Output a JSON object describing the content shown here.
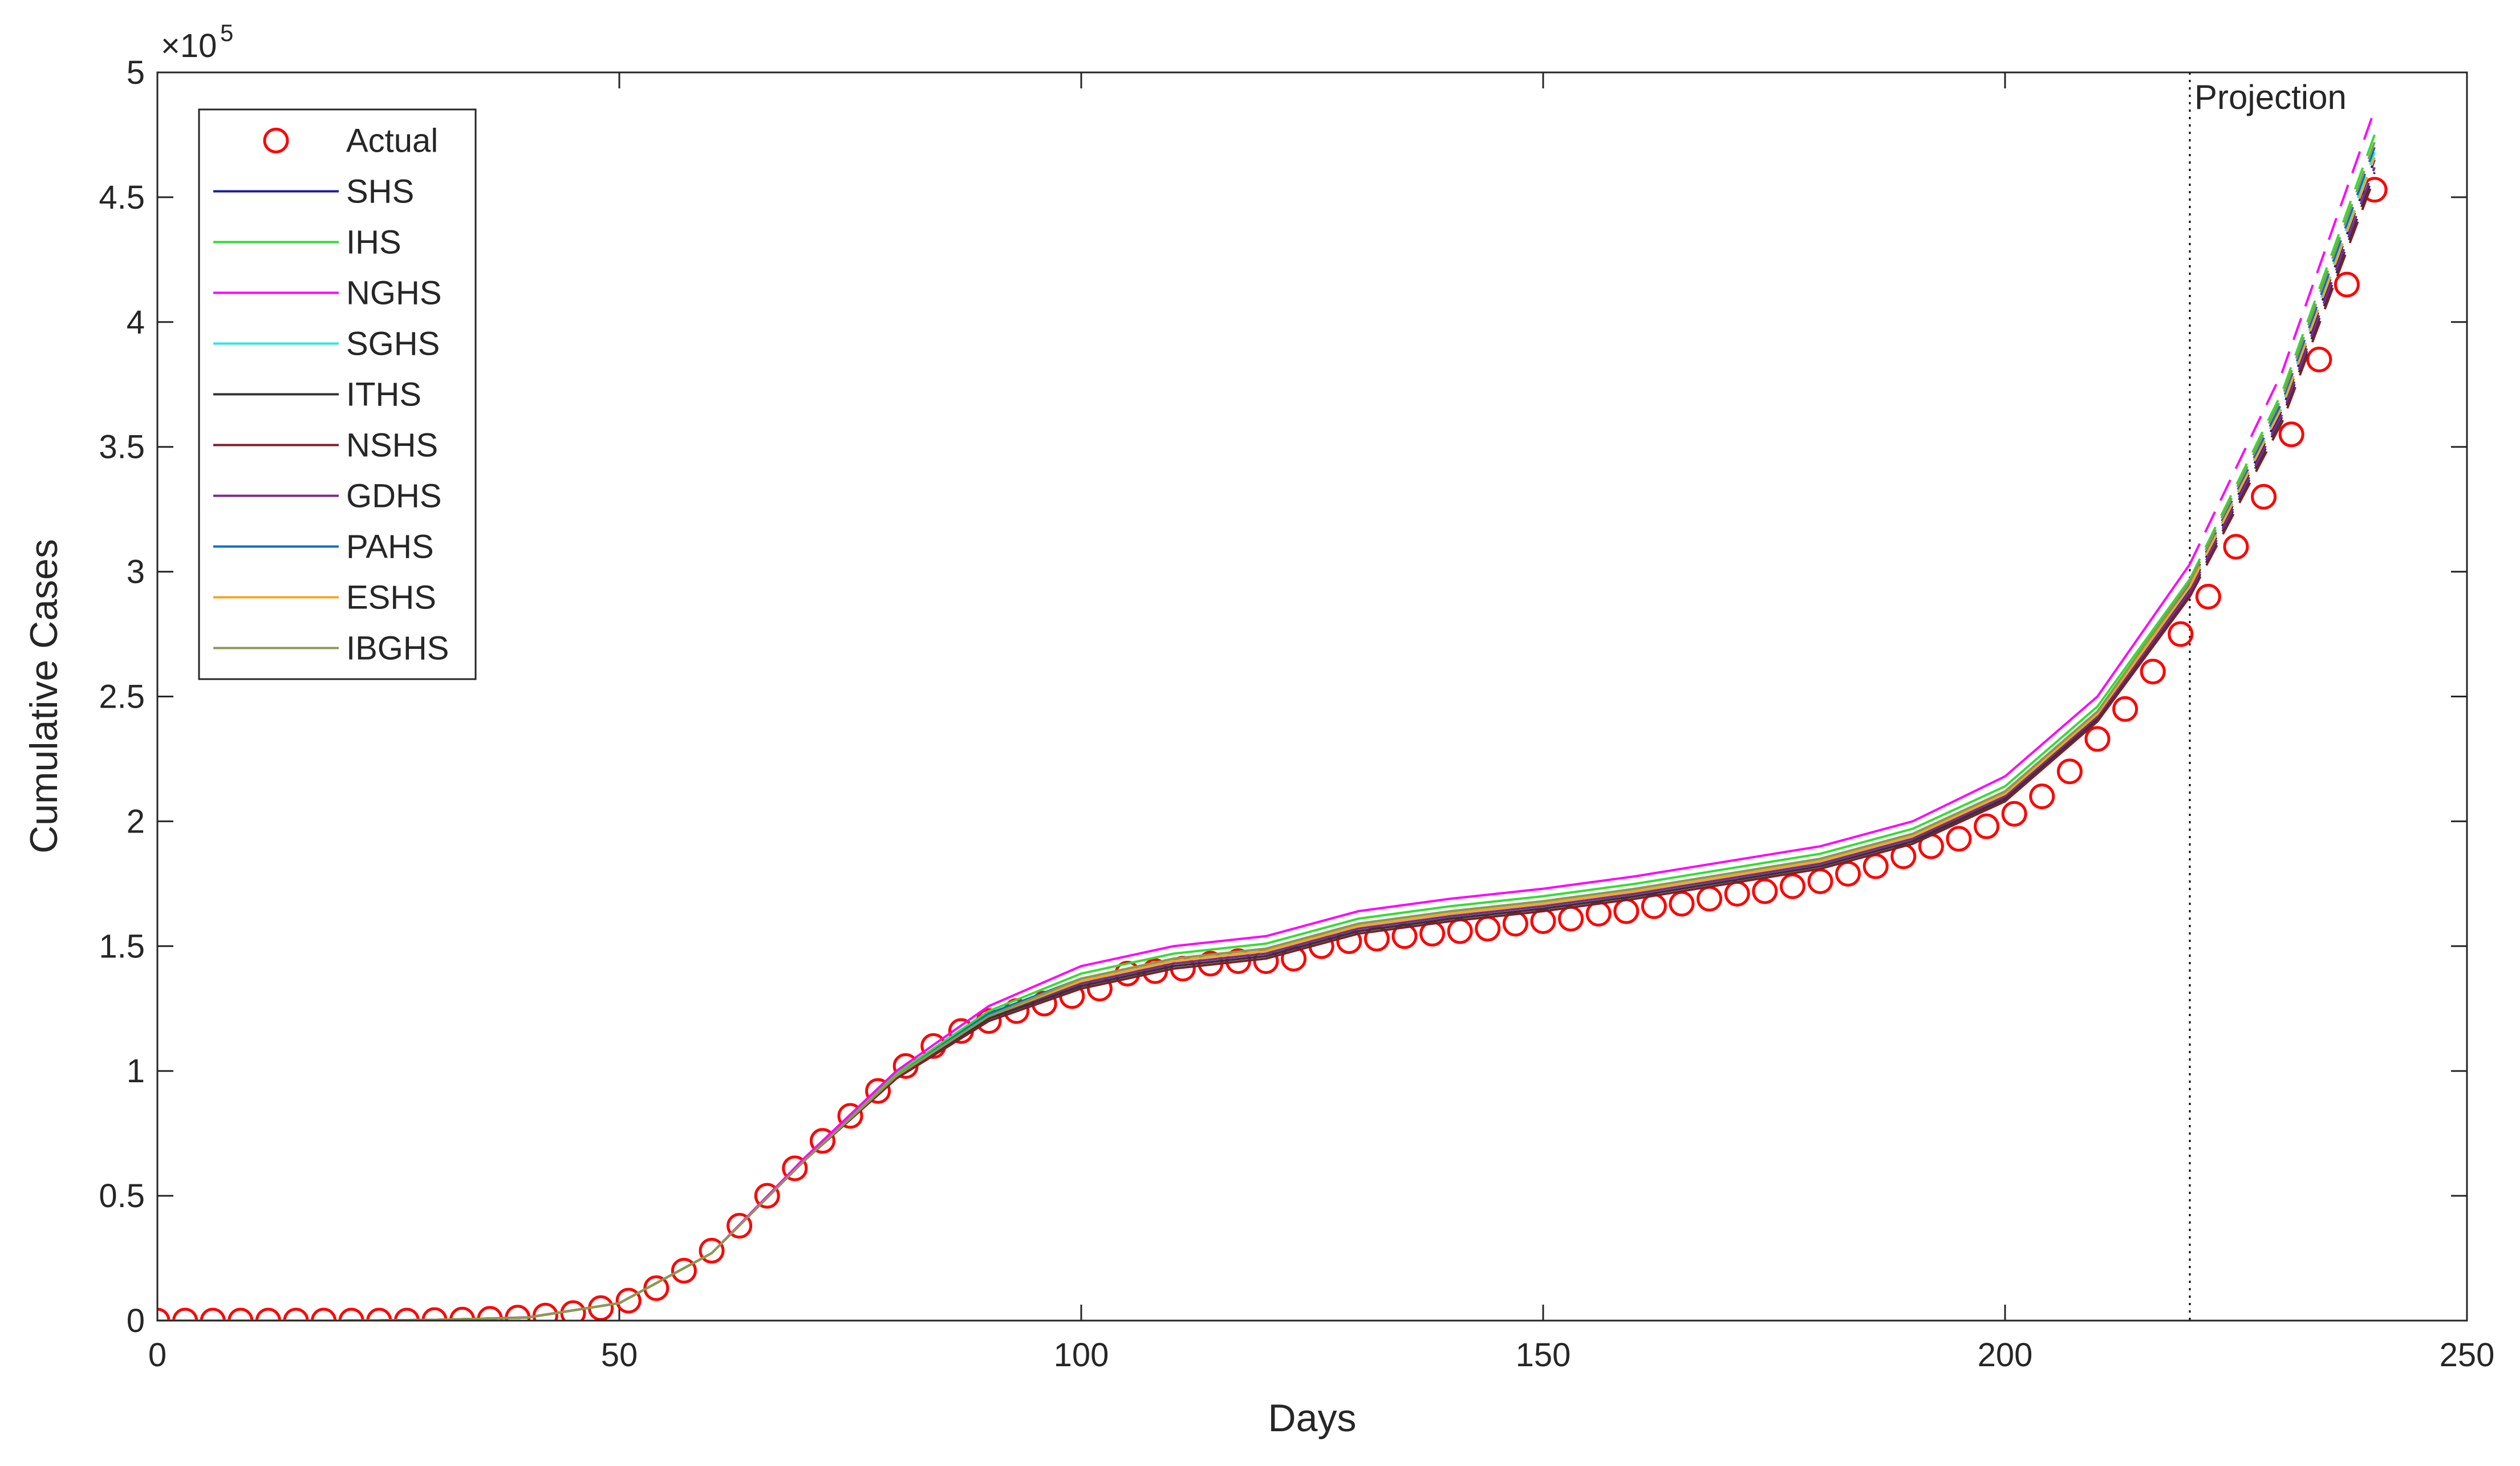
{
  "chart_data": {
    "type": "line",
    "xlabel": "Days",
    "ylabel": "Cumulative Cases",
    "y_multiplier": "×10",
    "y_multiplier_exponent": 5,
    "xlim": [
      0,
      250
    ],
    "ylim": [
      0,
      5
    ],
    "xticks": [
      0,
      50,
      100,
      150,
      200,
      250
    ],
    "yticks": [
      0,
      0.5,
      1,
      1.5,
      2,
      2.5,
      3,
      3.5,
      4,
      4.5,
      5
    ],
    "legend": "upper left",
    "projection": {
      "x": 220,
      "label": "Projection"
    },
    "x": [
      0,
      10,
      20,
      30,
      40,
      50,
      60,
      70,
      80,
      90,
      100,
      110,
      120,
      130,
      140,
      150,
      160,
      170,
      180,
      190,
      200,
      210,
      220,
      230,
      240
    ],
    "series": [
      {
        "name": "Actual",
        "color": "#ff0000",
        "marker": "circle",
        "x": [
          0,
          3,
          6,
          9,
          12,
          15,
          18,
          21,
          24,
          27,
          30,
          33,
          36,
          39,
          42,
          45,
          48,
          51,
          54,
          57,
          60,
          63,
          66,
          69,
          72,
          75,
          78,
          81,
          84,
          87,
          90,
          93,
          96,
          99,
          102,
          105,
          108,
          111,
          114,
          117,
          120,
          123,
          126,
          129,
          132,
          135,
          138,
          141,
          144,
          147,
          150,
          153,
          156,
          159,
          162,
          165,
          168,
          171,
          174,
          177,
          180,
          183,
          186,
          189,
          192,
          195,
          198,
          201,
          204,
          207,
          210,
          213,
          216,
          219,
          222,
          225,
          228,
          231,
          234,
          237,
          240
        ],
        "values": [
          0,
          0,
          0,
          0,
          0,
          0,
          0,
          0,
          0,
          0,
          0.002,
          0.004,
          0.007,
          0.012,
          0.02,
          0.03,
          0.05,
          0.08,
          0.13,
          0.2,
          0.28,
          0.38,
          0.5,
          0.61,
          0.72,
          0.82,
          0.92,
          1.02,
          1.1,
          1.16,
          1.2,
          1.24,
          1.27,
          1.3,
          1.33,
          1.39,
          1.4,
          1.41,
          1.43,
          1.44,
          1.44,
          1.45,
          1.5,
          1.52,
          1.53,
          1.54,
          1.55,
          1.56,
          1.57,
          1.59,
          1.6,
          1.61,
          1.63,
          1.64,
          1.66,
          1.67,
          1.69,
          1.71,
          1.72,
          1.74,
          1.76,
          1.79,
          1.82,
          1.86,
          1.9,
          1.93,
          1.98,
          2.03,
          2.1,
          2.2,
          2.33,
          2.45,
          2.6,
          2.75,
          2.9,
          3.1,
          3.3,
          3.55,
          3.85,
          4.15,
          4.53
        ]
      },
      {
        "name": "SHS",
        "color": "#1c1c9c",
        "values": [
          0,
          0,
          0,
          0.003,
          0.012,
          0.07,
          0.27,
          0.64,
          0.98,
          1.22,
          1.35,
          1.43,
          1.47,
          1.57,
          1.62,
          1.66,
          1.71,
          1.77,
          1.83,
          1.93,
          2.1,
          2.42,
          2.93,
          3.65,
          4.65
        ]
      },
      {
        "name": "IHS",
        "color": "#33dd33",
        "values": [
          0,
          0,
          0,
          0.003,
          0.012,
          0.07,
          0.27,
          0.64,
          0.99,
          1.24,
          1.39,
          1.47,
          1.51,
          1.61,
          1.66,
          1.7,
          1.75,
          1.81,
          1.87,
          1.97,
          2.14,
          2.46,
          2.97,
          3.72,
          4.75
        ]
      },
      {
        "name": "NGHS",
        "color": "#ff00ff",
        "values": [
          0,
          0,
          0,
          0.003,
          0.013,
          0.07,
          0.27,
          0.65,
          1.0,
          1.26,
          1.42,
          1.5,
          1.54,
          1.64,
          1.69,
          1.73,
          1.78,
          1.84,
          1.9,
          2.0,
          2.18,
          2.5,
          3.03,
          3.8,
          4.85
        ]
      },
      {
        "name": "SGHS",
        "color": "#2fe6e6",
        "values": [
          0,
          0,
          0,
          0.003,
          0.012,
          0.07,
          0.27,
          0.64,
          0.98,
          1.22,
          1.36,
          1.44,
          1.48,
          1.58,
          1.63,
          1.67,
          1.72,
          1.78,
          1.84,
          1.94,
          2.11,
          2.43,
          2.94,
          3.67,
          4.68
        ]
      },
      {
        "name": "ITHS",
        "color": "#333333",
        "values": [
          0,
          0,
          0,
          0.003,
          0.012,
          0.07,
          0.27,
          0.64,
          0.98,
          1.21,
          1.34,
          1.42,
          1.46,
          1.56,
          1.61,
          1.65,
          1.7,
          1.76,
          1.82,
          1.92,
          2.09,
          2.41,
          2.91,
          3.62,
          4.6
        ]
      },
      {
        "name": "NSHS",
        "color": "#7a1f2a",
        "values": [
          0,
          0,
          0,
          0.003,
          0.012,
          0.07,
          0.27,
          0.64,
          0.97,
          1.2,
          1.33,
          1.41,
          1.45,
          1.55,
          1.6,
          1.64,
          1.69,
          1.75,
          1.81,
          1.91,
          2.08,
          2.4,
          2.9,
          3.6,
          4.58
        ]
      },
      {
        "name": "GDHS",
        "color": "#7b2a8a",
        "values": [
          0,
          0,
          0,
          0.003,
          0.012,
          0.07,
          0.27,
          0.64,
          0.98,
          1.22,
          1.35,
          1.43,
          1.47,
          1.57,
          1.62,
          1.66,
          1.71,
          1.77,
          1.83,
          1.93,
          2.1,
          2.42,
          2.92,
          3.63,
          4.62
        ]
      },
      {
        "name": "PAHS",
        "color": "#0072bd",
        "values": [
          0,
          0,
          0,
          0.003,
          0.012,
          0.07,
          0.27,
          0.64,
          0.98,
          1.23,
          1.37,
          1.45,
          1.49,
          1.59,
          1.64,
          1.68,
          1.73,
          1.79,
          1.85,
          1.95,
          2.12,
          2.44,
          2.95,
          3.68,
          4.7
        ]
      },
      {
        "name": "ESHS",
        "color": "#f5a623",
        "values": [
          0,
          0,
          0,
          0.003,
          0.012,
          0.07,
          0.27,
          0.64,
          0.98,
          1.22,
          1.36,
          1.44,
          1.48,
          1.58,
          1.63,
          1.67,
          1.72,
          1.78,
          1.84,
          1.94,
          2.11,
          2.43,
          2.94,
          3.66,
          4.66
        ]
      },
      {
        "name": "IBGHS",
        "color": "#8a9a50",
        "values": [
          0,
          0,
          0,
          0.003,
          0.012,
          0.07,
          0.27,
          0.64,
          0.98,
          1.22,
          1.37,
          1.45,
          1.49,
          1.59,
          1.64,
          1.68,
          1.73,
          1.79,
          1.85,
          1.95,
          2.12,
          2.44,
          2.96,
          3.7,
          4.72
        ]
      }
    ]
  }
}
